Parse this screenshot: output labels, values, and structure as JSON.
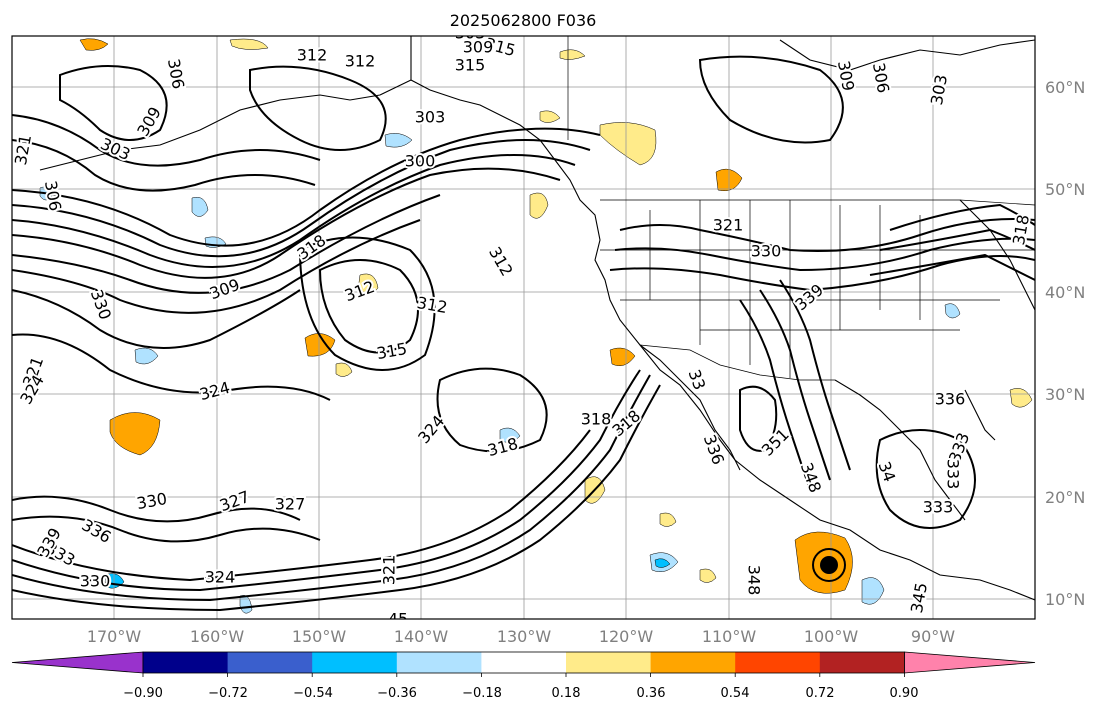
{
  "title": "2025062800 F036",
  "map": {
    "lat_labels": [
      "60°N",
      "50°N",
      "40°N",
      "30°N",
      "20°N",
      "10°N"
    ],
    "lon_labels": [
      "170°W",
      "160°W",
      "150°W",
      "140°W",
      "130°W",
      "120°W",
      "110°W",
      "100°W",
      "90°W"
    ],
    "contour_labels": [
      {
        "text": "312"
      },
      {
        "text": "315"
      },
      {
        "text": "303"
      },
      {
        "text": "309"
      },
      {
        "text": "312"
      },
      {
        "text": "315"
      },
      {
        "text": "309"
      },
      {
        "text": "306"
      },
      {
        "text": "303"
      },
      {
        "text": "306"
      },
      {
        "text": "309"
      },
      {
        "text": "303"
      },
      {
        "text": "303"
      },
      {
        "text": "300"
      },
      {
        "text": "321"
      },
      {
        "text": "306"
      },
      {
        "text": "321"
      },
      {
        "text": "330"
      },
      {
        "text": "318"
      },
      {
        "text": "312"
      },
      {
        "text": "309"
      },
      {
        "text": "312"
      },
      {
        "text": "312"
      },
      {
        "text": "318"
      },
      {
        "text": "339"
      },
      {
        "text": "330"
      },
      {
        "text": "315"
      },
      {
        "text": "324"
      },
      {
        "text": "321"
      },
      {
        "text": "324"
      },
      {
        "text": "324"
      },
      {
        "text": "318"
      },
      {
        "text": "318"
      },
      {
        "text": "33"
      },
      {
        "text": "336"
      },
      {
        "text": "336"
      },
      {
        "text": "351"
      },
      {
        "text": "348"
      },
      {
        "text": "34"
      },
      {
        "text": "333"
      },
      {
        "text": "333"
      },
      {
        "text": "330"
      },
      {
        "text": "327"
      },
      {
        "text": "327"
      },
      {
        "text": "336"
      },
      {
        "text": "333"
      },
      {
        "text": "339"
      },
      {
        "text": "330"
      },
      {
        "text": "324"
      },
      {
        "text": "321"
      },
      {
        "text": "348"
      },
      {
        "text": "333"
      },
      {
        "text": "345"
      },
      {
        "text": "45"
      },
      {
        "text": "318"
      }
    ]
  },
  "colorbar": {
    "labels": [
      "−0.90",
      "−0.72",
      "−0.54",
      "−0.36",
      "−0.18",
      "0.18",
      "0.36",
      "0.54",
      "0.72",
      "0.90"
    ],
    "colors": [
      "#9932cc",
      "#00008b",
      "#3a5fcd",
      "#00bfff",
      "#b0e2ff",
      "#ffffff",
      "#ffeb8a",
      "#ffa500",
      "#ff4500",
      "#b22222",
      "#ff82ab"
    ]
  }
}
